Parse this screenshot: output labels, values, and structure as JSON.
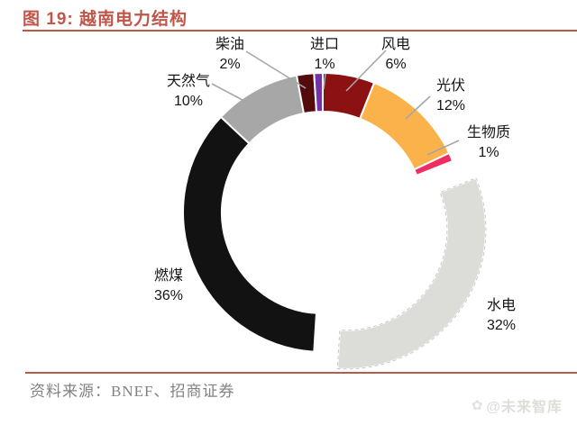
{
  "header": {
    "title": "图 19: 越南电力结构"
  },
  "chart_data": {
    "type": "donut",
    "title": "越南电力结构",
    "unit": "%",
    "direction": "clockwise",
    "start_angle_deg": 0,
    "inner_radius_ratio": 0.72,
    "legend": "none",
    "label_position": "outside",
    "total": 100,
    "slices": [
      {
        "id": "wind",
        "label": "风电",
        "value": 6,
        "pct": "6%",
        "color": "#8C1113",
        "exploded": false
      },
      {
        "id": "solar",
        "label": "光伏",
        "value": 12,
        "pct": "12%",
        "color": "#FBB24B",
        "exploded": false
      },
      {
        "id": "biomass",
        "label": "生物质",
        "value": 1,
        "pct": "1%",
        "color": "#EF2D63",
        "exploded": false
      },
      {
        "id": "hydro",
        "label": "水电",
        "value": 32,
        "pct": "32%",
        "color": "#DCDCD8",
        "exploded": true
      },
      {
        "id": "coal",
        "label": "燃煤",
        "value": 36,
        "pct": "36%",
        "color": "#121212",
        "exploded": false
      },
      {
        "id": "gas",
        "label": "天然气",
        "value": 10,
        "pct": "10%",
        "color": "#A7A7A7",
        "exploded": false
      },
      {
        "id": "diesel",
        "label": "柴油",
        "value": 2,
        "pct": "2%",
        "color": "#530B0B",
        "exploded": false
      },
      {
        "id": "import",
        "label": "进口",
        "value": 1,
        "pct": "1%",
        "color": "#7233A6",
        "exploded": false
      }
    ]
  },
  "footer": {
    "source_label": "资料来源：BNEF、招商证券"
  },
  "watermark": {
    "icon": "cluster-logo-icon",
    "text": "@未来智库"
  },
  "colors": {
    "accent_title": "#C0564A",
    "footer_rule": "#BA5A48",
    "leader_line": "#A6A6A6",
    "label_text": "#151515",
    "source_text": "#828282"
  }
}
